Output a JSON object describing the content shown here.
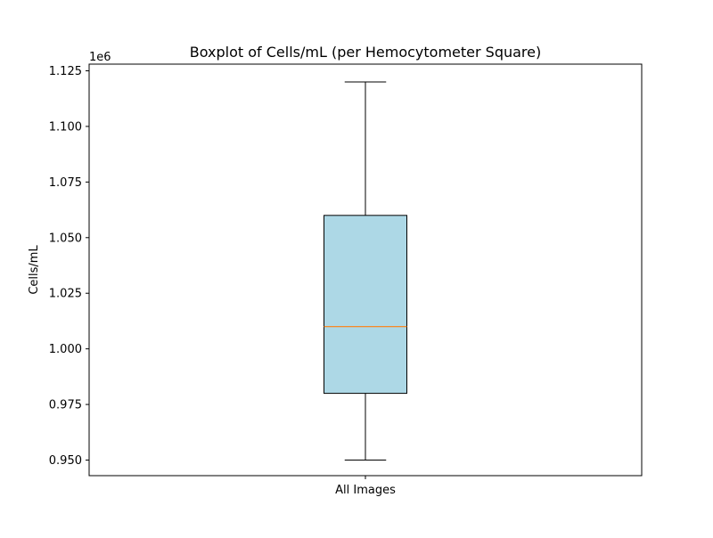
{
  "chart_data": {
    "type": "box",
    "title": "Boxplot of Cells/mL (per Hemocytometer Square)",
    "xlabel": "",
    "ylabel": "Cells/mL",
    "offset_label": "1e6",
    "categories": [
      "All Images"
    ],
    "boxes": [
      {
        "category": "All Images",
        "whisker_low": 950000,
        "q1": 980000,
        "median": 1010000,
        "q3": 1060000,
        "whisker_high": 1120000
      }
    ],
    "ylim": [
      943000,
      1128000
    ],
    "yticks": [
      950000,
      975000,
      1000000,
      1025000,
      1050000,
      1075000,
      1100000,
      1125000
    ],
    "ytick_labels": [
      "0.950",
      "0.975",
      "1.000",
      "1.025",
      "1.050",
      "1.075",
      "1.100",
      "1.125"
    ],
    "grid": false,
    "colors": {
      "box_fill": "#add8e6",
      "box_edge": "#000000",
      "median": "#ff7f0e",
      "whisker": "#000000"
    }
  }
}
